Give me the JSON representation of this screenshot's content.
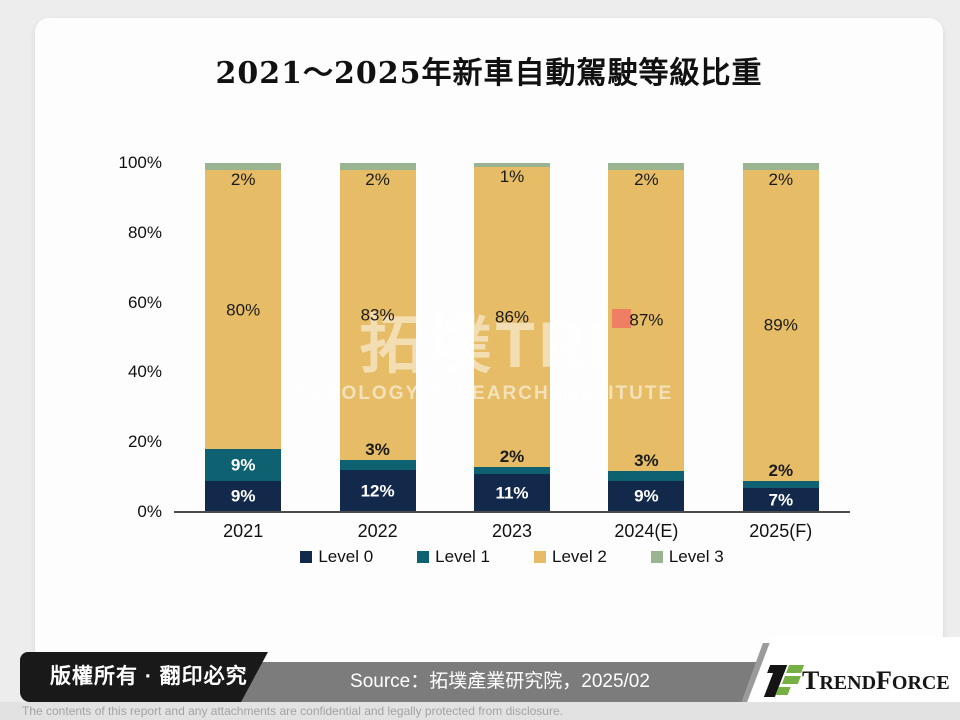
{
  "page_title": "2021～2025年新車自動駕駛等級比重",
  "watermark": {
    "cjk": "拓墣",
    "latin": "TRI",
    "subtitle": "TOPOLOGY RESEARCH INSTITUTE"
  },
  "chart_data": {
    "type": "bar",
    "stacked": true,
    "grid": false,
    "legend_position": "bottom",
    "title": "2021～2025年新車自動駕駛等級比重",
    "categories": [
      "2021",
      "2022",
      "2023",
      "2024(E)",
      "2025(F)"
    ],
    "series": [
      {
        "name": "Level 0",
        "color": "#12294b",
        "label_color": "#ffffff",
        "label_mode": "center",
        "values": [
          9,
          12,
          11,
          9,
          7
        ]
      },
      {
        "name": "Level 1",
        "color": "#0d6170",
        "label_color": "#ffffff",
        "label_mode": "center-or-above",
        "values": [
          9,
          3,
          2,
          3,
          2
        ]
      },
      {
        "name": "Level 2",
        "color": "#e6bd66",
        "label_color": "#1a1a1a",
        "label_mode": "center",
        "values": [
          80,
          83,
          86,
          87,
          89
        ]
      },
      {
        "name": "Level 3",
        "color": "#9ab390",
        "label_color": "#1a1a1a",
        "label_mode": "below",
        "values": [
          2,
          2,
          1,
          2,
          2
        ]
      }
    ],
    "xlabel": "",
    "ylabel": "",
    "ylim": [
      0,
      100
    ],
    "y_ticks": [
      0,
      20,
      40,
      60,
      80,
      100
    ],
    "y_tick_suffix": "%",
    "value_suffix": "%",
    "small_label_color": "#1a1a1a"
  },
  "annotations": {
    "marker_color": "#ef7e62"
  },
  "footer": {
    "copyright": "版權所有 · 翻印必究",
    "source": "Source：拓墣產業研究院，2025/02",
    "disclaimer": "The contents of this report and any attachments are confidential and legally protected from disclosure.",
    "brand": {
      "t": "T",
      "rend": "REND",
      "f": "F",
      "orce": "ORCE"
    }
  }
}
